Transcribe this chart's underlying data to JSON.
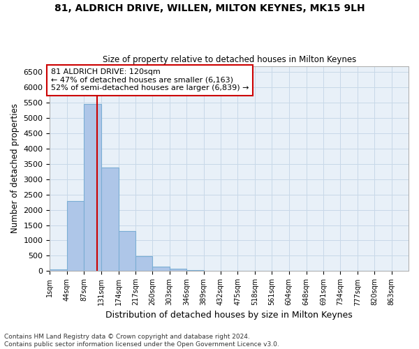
{
  "title1": "81, ALDRICH DRIVE, WILLEN, MILTON KEYNES, MK15 9LH",
  "title2": "Size of property relative to detached houses in Milton Keynes",
  "xlabel": "Distribution of detached houses by size in Milton Keynes",
  "ylabel": "Number of detached properties",
  "footnote1": "Contains HM Land Registry data © Crown copyright and database right 2024.",
  "footnote2": "Contains public sector information licensed under the Open Government Licence v3.0.",
  "bin_starts": [
    1,
    44,
    87,
    131,
    174,
    217,
    260,
    303,
    346,
    389,
    432,
    475,
    518,
    561,
    604,
    648,
    691,
    734,
    777,
    820,
    863
  ],
  "bin_width": 43,
  "bar_heights": [
    60,
    2280,
    5450,
    3380,
    1310,
    480,
    155,
    75,
    40,
    15,
    10,
    5,
    3,
    2,
    1,
    1,
    0,
    0,
    0,
    0
  ],
  "bar_color": "#aec6e8",
  "bar_edgecolor": "#7aaed4",
  "grid_color": "#c8d8e8",
  "bg_color": "#e8f0f8",
  "vline_x": 120,
  "vline_color": "#cc0000",
  "annotation_line1": "81 ALDRICH DRIVE: 120sqm",
  "annotation_line2": "← 47% of detached houses are smaller (6,163)",
  "annotation_line3": "52% of semi-detached houses are larger (6,839) →",
  "ylim_max": 6700,
  "yticks": [
    0,
    500,
    1000,
    1500,
    2000,
    2500,
    3000,
    3500,
    4000,
    4500,
    5000,
    5500,
    6000,
    6500
  ],
  "tick_labels": [
    "1sqm",
    "44sqm",
    "87sqm",
    "131sqm",
    "174sqm",
    "217sqm",
    "260sqm",
    "303sqm",
    "346sqm",
    "389sqm",
    "432sqm",
    "475sqm",
    "518sqm",
    "561sqm",
    "604sqm",
    "648sqm",
    "691sqm",
    "734sqm",
    "777sqm",
    "820sqm",
    "863sqm"
  ]
}
